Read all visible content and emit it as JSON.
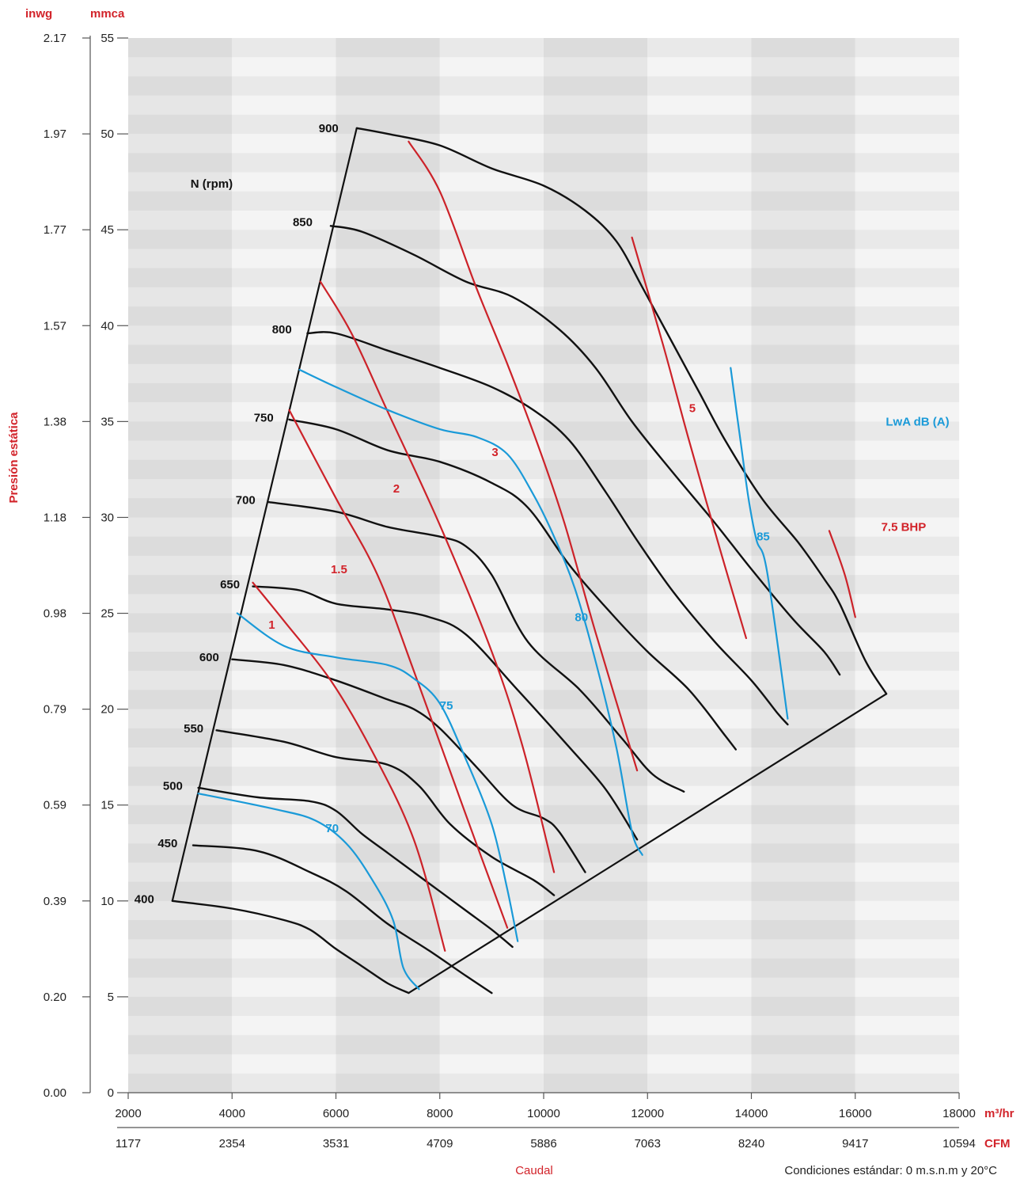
{
  "chart_data": {
    "type": "line",
    "title": "",
    "ylabel": "Presión estática",
    "xlabel": "Caudal",
    "note": "Condiciones estándar: 0 m.s.n.m y 20°C",
    "x_unit_primary": "m³/hr",
    "x_unit_secondary": "CFM",
    "y_unit_primary": "mmca",
    "y_unit_secondary": "inwg",
    "xlim": [
      2000,
      18000
    ],
    "ylim": [
      0,
      55
    ],
    "x_ticks": [
      2000,
      4000,
      6000,
      8000,
      10000,
      12000,
      14000,
      16000,
      18000
    ],
    "x_ticks_cfm": [
      "1177",
      "2354",
      "3531",
      "4709",
      "5886",
      "7063",
      "8240",
      "9417",
      "10594"
    ],
    "y_ticks": [
      0,
      5,
      10,
      15,
      20,
      25,
      30,
      35,
      40,
      45,
      50,
      55
    ],
    "y_ticks_inwg": [
      "0.00",
      "0.20",
      "0.39",
      "0.59",
      "0.79",
      "0.98",
      "1.18",
      "1.38",
      "1.57",
      "1.77",
      "1.97",
      "2.17"
    ],
    "rpm_title": "N (rpm)",
    "db_title": "LwA dB (A)",
    "colors": {
      "rpm": "#111111",
      "bhp": "#cc2229",
      "db": "#1a9ad8",
      "band_dark": "#e2e2e2",
      "band_light": "#f3f3f3",
      "label_red": "#d2232a"
    },
    "rpm_curves": [
      {
        "label": "400",
        "points": [
          [
            2850,
            10
          ],
          [
            4000,
            9.6
          ],
          [
            5000,
            9
          ],
          [
            5500,
            8.5
          ],
          [
            6000,
            7.5
          ],
          [
            6500,
            6.6
          ],
          [
            7000,
            5.7
          ],
          [
            7400,
            5.2
          ]
        ]
      },
      {
        "label": "450",
        "points": [
          [
            3250,
            12.9
          ],
          [
            4500,
            12.6
          ],
          [
            5500,
            11.5
          ],
          [
            6200,
            10.5
          ],
          [
            7000,
            8.8
          ],
          [
            7800,
            7.4
          ],
          [
            8500,
            6.1
          ],
          [
            9000,
            5.2
          ]
        ]
      },
      {
        "label": "500",
        "points": [
          [
            3350,
            15.9
          ],
          [
            4500,
            15.4
          ],
          [
            5500,
            15.2
          ],
          [
            6000,
            14.7
          ],
          [
            6500,
            13.5
          ],
          [
            7000,
            12.5
          ],
          [
            7500,
            11.5
          ],
          [
            8000,
            10.5
          ],
          [
            8500,
            9.5
          ],
          [
            9000,
            8.5
          ],
          [
            9400,
            7.6
          ]
        ]
      },
      {
        "label": "550",
        "points": [
          [
            3700,
            18.9
          ],
          [
            5000,
            18.3
          ],
          [
            6000,
            17.5
          ],
          [
            7000,
            17.1
          ],
          [
            7600,
            16
          ],
          [
            8200,
            14
          ],
          [
            9000,
            12.3
          ],
          [
            9800,
            11.1
          ],
          [
            10200,
            10.3
          ]
        ]
      },
      {
        "label": "600",
        "points": [
          [
            4000,
            22.6
          ],
          [
            5000,
            22.3
          ],
          [
            6000,
            21.5
          ],
          [
            7000,
            20.5
          ],
          [
            7500,
            20
          ],
          [
            8000,
            19
          ],
          [
            8700,
            17
          ],
          [
            9400,
            15
          ],
          [
            10000,
            14.3
          ],
          [
            10300,
            13.6
          ],
          [
            10800,
            11.5
          ]
        ]
      },
      {
        "label": "650",
        "points": [
          [
            4400,
            26.4
          ],
          [
            5300,
            26.2
          ],
          [
            6000,
            25.5
          ],
          [
            7000,
            25.2
          ],
          [
            7800,
            24.8
          ],
          [
            8500,
            23.9
          ],
          [
            9500,
            21
          ],
          [
            10500,
            18
          ],
          [
            11200,
            15.8
          ],
          [
            11800,
            13.2
          ]
        ]
      },
      {
        "label": "700",
        "points": [
          [
            4700,
            30.8
          ],
          [
            6000,
            30.3
          ],
          [
            7000,
            29.5
          ],
          [
            8000,
            29
          ],
          [
            8500,
            28.5
          ],
          [
            9000,
            27
          ],
          [
            9700,
            23.5
          ],
          [
            10700,
            21
          ],
          [
            11500,
            18.5
          ],
          [
            12100,
            16.6
          ],
          [
            12700,
            15.7
          ]
        ]
      },
      {
        "label": "750",
        "points": [
          [
            5100,
            35.1
          ],
          [
            6000,
            34.6
          ],
          [
            7000,
            33.5
          ],
          [
            8000,
            32.9
          ],
          [
            9000,
            31.8
          ],
          [
            9700,
            30.5
          ],
          [
            10500,
            27.5
          ],
          [
            11300,
            25
          ],
          [
            12000,
            23
          ],
          [
            12800,
            21
          ],
          [
            13500,
            18.6
          ],
          [
            13700,
            17.9
          ]
        ]
      },
      {
        "label": "800",
        "points": [
          [
            5450,
            39.6
          ],
          [
            6000,
            39.6
          ],
          [
            7000,
            38.7
          ],
          [
            8000,
            37.8
          ],
          [
            9000,
            36.8
          ],
          [
            9800,
            35.6
          ],
          [
            10500,
            34
          ],
          [
            11200,
            31.3
          ],
          [
            11800,
            28.8
          ],
          [
            12500,
            26.1
          ],
          [
            13300,
            23.5
          ],
          [
            14000,
            21.5
          ],
          [
            14500,
            19.8
          ],
          [
            14700,
            19.2
          ]
        ]
      },
      {
        "label": "850",
        "points": [
          [
            5900,
            45.2
          ],
          [
            6500,
            44.9
          ],
          [
            7500,
            43.7
          ],
          [
            8500,
            42.3
          ],
          [
            9400,
            41.5
          ],
          [
            10300,
            39.8
          ],
          [
            11000,
            37.8
          ],
          [
            11700,
            35
          ],
          [
            12500,
            32.3
          ],
          [
            13300,
            29.7
          ],
          [
            14000,
            27.3
          ],
          [
            14800,
            24.7
          ],
          [
            15400,
            23
          ],
          [
            15700,
            21.8
          ]
        ]
      },
      {
        "label": "900",
        "points": [
          [
            6400,
            50.3
          ],
          [
            7000,
            50
          ],
          [
            8000,
            49.4
          ],
          [
            9000,
            48.2
          ],
          [
            10000,
            47.3
          ],
          [
            10800,
            46
          ],
          [
            11400,
            44.4
          ],
          [
            11900,
            42
          ],
          [
            12500,
            39
          ],
          [
            13000,
            36.5
          ],
          [
            13500,
            34
          ],
          [
            14200,
            31
          ],
          [
            14900,
            28.7
          ],
          [
            15400,
            26.8
          ],
          [
            15700,
            25.5
          ],
          [
            16200,
            22.5
          ],
          [
            16600,
            20.8
          ]
        ]
      }
    ],
    "bhp_curves": [
      {
        "label": "1",
        "points": [
          [
            4400,
            26.6
          ],
          [
            5000,
            24.6
          ],
          [
            5900,
            21.5
          ],
          [
            6700,
            17.8
          ],
          [
            7500,
            13.2
          ],
          [
            8100,
            7.4
          ]
        ]
      },
      {
        "label": "1.5",
        "points": [
          [
            5100,
            35.6
          ],
          [
            6000,
            31
          ],
          [
            6800,
            27
          ],
          [
            7500,
            22
          ],
          [
            8500,
            14.5
          ],
          [
            9300,
            8.6
          ]
        ]
      },
      {
        "label": "2",
        "points": [
          [
            5700,
            42.3
          ],
          [
            6300,
            39.6
          ],
          [
            7000,
            35.5
          ],
          [
            8000,
            29.6
          ],
          [
            9000,
            23
          ],
          [
            9600,
            18
          ],
          [
            10200,
            11.5
          ]
        ]
      },
      {
        "label": "3",
        "points": [
          [
            7400,
            49.6
          ],
          [
            8000,
            47
          ],
          [
            8700,
            42
          ],
          [
            9300,
            38
          ],
          [
            9900,
            33.7
          ],
          [
            10400,
            29.7
          ],
          [
            11000,
            24
          ],
          [
            11800,
            16.8
          ]
        ]
      },
      {
        "label": "5",
        "points": [
          [
            11700,
            44.6
          ],
          [
            12300,
            39
          ],
          [
            12800,
            34
          ],
          [
            13400,
            28.3
          ],
          [
            13900,
            23.7
          ]
        ]
      },
      {
        "label": "7.5 BHP",
        "points": [
          [
            15500,
            29.3
          ],
          [
            15800,
            27
          ],
          [
            16000,
            24.8
          ]
        ]
      }
    ],
    "db_curves": [
      {
        "label": "70",
        "points": [
          [
            3350,
            15.6
          ],
          [
            4800,
            14.8
          ],
          [
            5600,
            14.2
          ],
          [
            6200,
            13
          ],
          [
            6700,
            11.1
          ],
          [
            7100,
            9
          ],
          [
            7300,
            6.5
          ],
          [
            7600,
            5.4
          ]
        ]
      },
      {
        "label": "75",
        "points": [
          [
            4100,
            25
          ],
          [
            5000,
            23.3
          ],
          [
            6000,
            22.7
          ],
          [
            7000,
            22.3
          ],
          [
            7500,
            21.6
          ],
          [
            8000,
            20.3
          ],
          [
            8500,
            17.4
          ],
          [
            9000,
            14
          ],
          [
            9300,
            10.6
          ],
          [
            9500,
            7.9
          ]
        ]
      },
      {
        "label": "80",
        "points": [
          [
            5300,
            37.7
          ],
          [
            6000,
            36.8
          ],
          [
            7000,
            35.6
          ],
          [
            8000,
            34.6
          ],
          [
            8700,
            34.2
          ],
          [
            9300,
            33.3
          ],
          [
            9800,
            31.2
          ],
          [
            10200,
            29
          ],
          [
            10600,
            26.3
          ],
          [
            11000,
            22.5
          ],
          [
            11400,
            18
          ],
          [
            11700,
            13.6
          ],
          [
            11900,
            12.4
          ]
        ]
      },
      {
        "label": "85",
        "points": [
          [
            13600,
            37.8
          ],
          [
            13800,
            33.8
          ],
          [
            13950,
            30.9
          ],
          [
            14100,
            28.8
          ],
          [
            14300,
            27.2
          ],
          [
            14700,
            19.5
          ]
        ]
      }
    ],
    "boundary": {
      "left_edge": [
        [
          2850,
          10
        ],
        [
          6400,
          50.3
        ]
      ],
      "bottom_edge": [
        [
          7400,
          5.2
        ],
        [
          16600,
          20.8
        ]
      ]
    },
    "curve_labels": {
      "rpm": [
        [
          2500,
          10.1
        ],
        [
          2950,
          13
        ],
        [
          3050,
          16
        ],
        [
          3450,
          19
        ],
        [
          3750,
          22.7
        ],
        [
          4150,
          26.5
        ],
        [
          4450,
          30.9
        ],
        [
          4800,
          35.2
        ],
        [
          5150,
          39.8
        ],
        [
          5550,
          45.4
        ],
        [
          6050,
          50.3
        ]
      ],
      "bhp": [
        [
          4700,
          24.4
        ],
        [
          5900,
          27.3
        ],
        [
          7100,
          31.5
        ],
        [
          9000,
          33.4
        ],
        [
          12800,
          35.7
        ],
        [
          16500,
          29.5
        ]
      ],
      "db": [
        [
          5800,
          13.8
        ],
        [
          8000,
          20.2
        ],
        [
          10600,
          24.8
        ],
        [
          14100,
          29
        ]
      ],
      "rpm_title": [
        3200,
        47.4
      ],
      "db_title": [
        17200,
        35
      ]
    }
  }
}
